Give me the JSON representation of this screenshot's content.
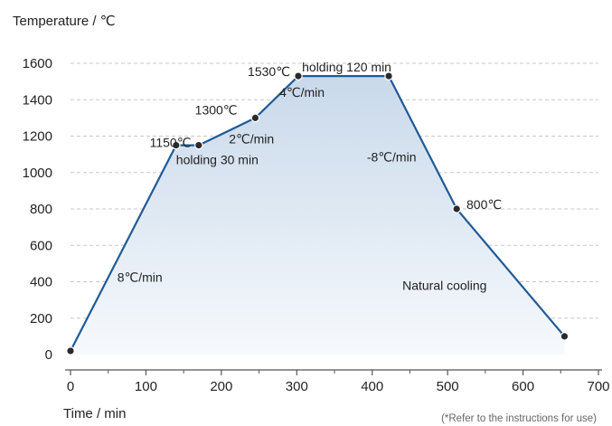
{
  "chart_data": {
    "type": "line",
    "ylabel": "Temperature / ℃",
    "xlabel": "Time / min",
    "footnote": "(*Refer to the instructions for use)",
    "xlim": [
      0,
      700
    ],
    "ylim": [
      0,
      1600
    ],
    "x_ticks": [
      0,
      100,
      200,
      300,
      400,
      500,
      600,
      700
    ],
    "y_ticks": [
      0,
      200,
      400,
      600,
      800,
      1000,
      1200,
      1400,
      1600
    ],
    "grid": "horizontal dashed",
    "colors": {
      "line": "#1f5a96",
      "point": "#2b2b2b",
      "fill_top": "#c9d9ea",
      "fill_bottom": "#f6f9fc",
      "grid": "#c8c8c8",
      "axis": "#555555"
    },
    "series": [
      {
        "x": [
          0,
          140,
          170,
          245,
          302,
          422,
          512,
          655
        ],
        "y": [
          20,
          1150,
          1150,
          1300,
          1530,
          1530,
          800,
          100
        ]
      }
    ],
    "annotations": [
      {
        "text": "8℃/min",
        "x": 62,
        "y": 400
      },
      {
        "text": "1150℃",
        "x": 105,
        "y": 1140
      },
      {
        "text": "holding 30 min",
        "x": 140,
        "y": 1045
      },
      {
        "text": "2℃/min",
        "x": 210,
        "y": 1160
      },
      {
        "text": "1300℃",
        "x": 165,
        "y": 1320
      },
      {
        "text": "4℃/min",
        "x": 277,
        "y": 1415
      },
      {
        "text": "1530℃",
        "x": 235,
        "y": 1530
      },
      {
        "text": "holding 120 min",
        "x": 307,
        "y": 1555
      },
      {
        "text": "-8℃/min",
        "x": 393,
        "y": 1060
      },
      {
        "text": "800℃",
        "x": 525,
        "y": 800
      },
      {
        "text": "Natural cooling",
        "x": 440,
        "y": 355
      }
    ]
  }
}
